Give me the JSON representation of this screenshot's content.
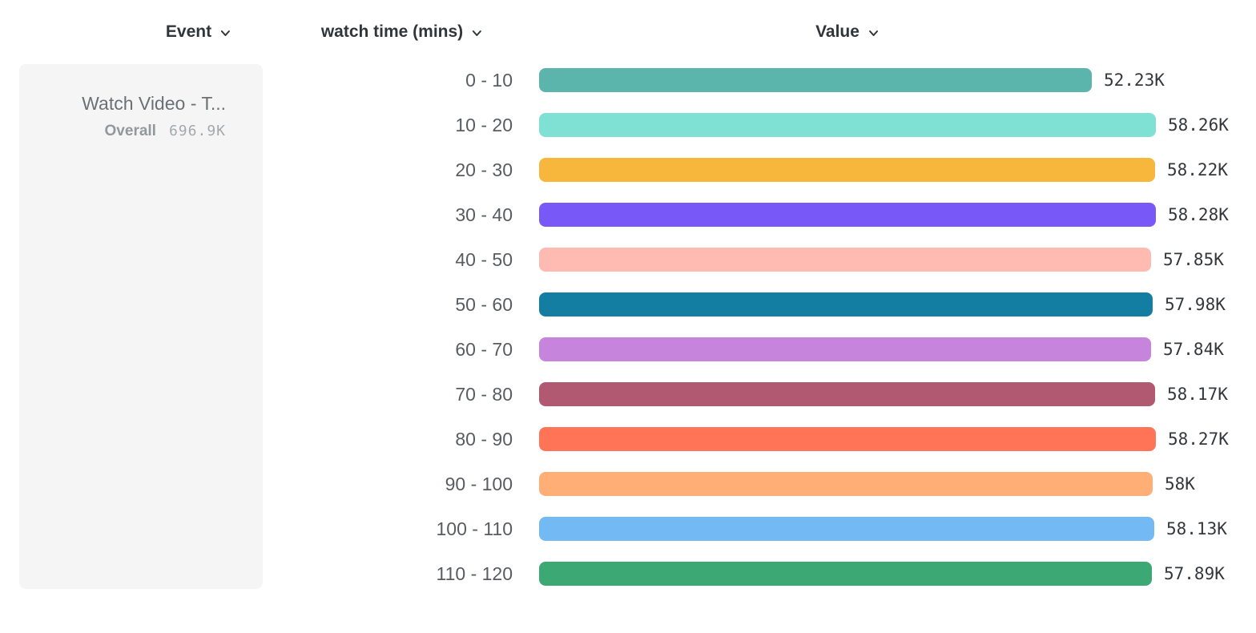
{
  "header": {
    "columns": [
      {
        "label": "Event",
        "icon": "chevron-down"
      },
      {
        "label": "watch time (mins)",
        "icon": "chevron-down"
      },
      {
        "label": "Value",
        "icon": "chevron-down"
      }
    ]
  },
  "event_card": {
    "title": "Watch Video - T...",
    "overall_label": "Overall",
    "overall_value": "696.9K"
  },
  "chart_data": {
    "type": "bar",
    "orientation": "horizontal",
    "title": "",
    "xlabel": "Value",
    "ylabel": "watch time (mins)",
    "categories": [
      "0 - 10",
      "10 - 20",
      "20 - 30",
      "30 - 40",
      "40 - 50",
      "50 - 60",
      "60 - 70",
      "70 - 80",
      "80 - 90",
      "90 - 100",
      "100 - 110",
      "110 - 120"
    ],
    "values": [
      52230,
      58260,
      58220,
      58280,
      57850,
      57980,
      57840,
      58170,
      58270,
      58000,
      58130,
      57890
    ],
    "value_labels": [
      "52.23K",
      "58.26K",
      "58.22K",
      "58.28K",
      "57.85K",
      "57.98K",
      "57.84K",
      "58.17K",
      "58.27K",
      "58K",
      "58.13K",
      "57.89K"
    ],
    "bar_colors": [
      "#5BB5AC",
      "#7FE0D4",
      "#F6B73C",
      "#7958F8",
      "#FFBBB1",
      "#137DA2",
      "#C684DC",
      "#B15970",
      "#FF7356",
      "#FFAF76",
      "#73BAF4",
      "#3CA873"
    ],
    "xlim": [
      0,
      58280
    ],
    "grid": false,
    "legend": false
  },
  "colors": {
    "card_background": "#f5f5f5",
    "header_text": "#30353a",
    "category_text": "#575d62",
    "value_text": "#33383d"
  }
}
